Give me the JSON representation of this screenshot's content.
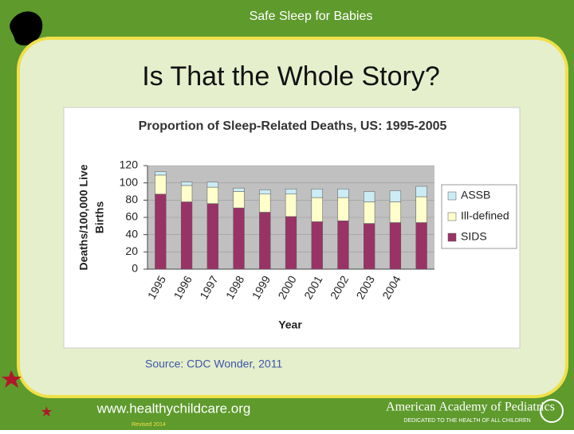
{
  "header": "Safe Sleep for Babies",
  "title": "Is That the Whole Story?",
  "chart_data": {
    "type": "stacked_bar",
    "title": "Proportion of Sleep-Related Deaths, US: 1995-2005",
    "xlabel": "Year",
    "ylabel": [
      "Deaths/100,000 Live",
      "Births"
    ],
    "categories": [
      "1995",
      "1996",
      "1997",
      "1998",
      "1999",
      "2000",
      "2001",
      "2002",
      "2003",
      "2004",
      null
    ],
    "series": [
      {
        "name": "SIDS",
        "color": "#993366",
        "values": [
          87,
          78,
          76,
          71,
          66,
          61,
          55,
          56,
          53,
          54,
          54
        ]
      },
      {
        "name": "Ill-defined",
        "color": "#ffffcc",
        "values": [
          22,
          19,
          19,
          19,
          21,
          26,
          28,
          27,
          25,
          24,
          30
        ]
      },
      {
        "name": "ASSB",
        "color": "#ccecf4",
        "values": [
          4,
          4,
          6,
          4,
          5,
          6,
          10,
          10,
          12,
          13,
          12
        ]
      }
    ],
    "ylim": [
      0,
      120
    ],
    "yticks": [
      0,
      20,
      40,
      60,
      80,
      100,
      120
    ],
    "grid": true,
    "legend": "right"
  },
  "source": "Source:  CDC Wonder, 2011",
  "footer": {
    "url": "www.healthychildcare.org",
    "revised": "Revised 2014",
    "org": "American Academy of Pediatrics",
    "tagline": "DEDICATED TO THE HEALTH OF ALL CHILDREN"
  }
}
